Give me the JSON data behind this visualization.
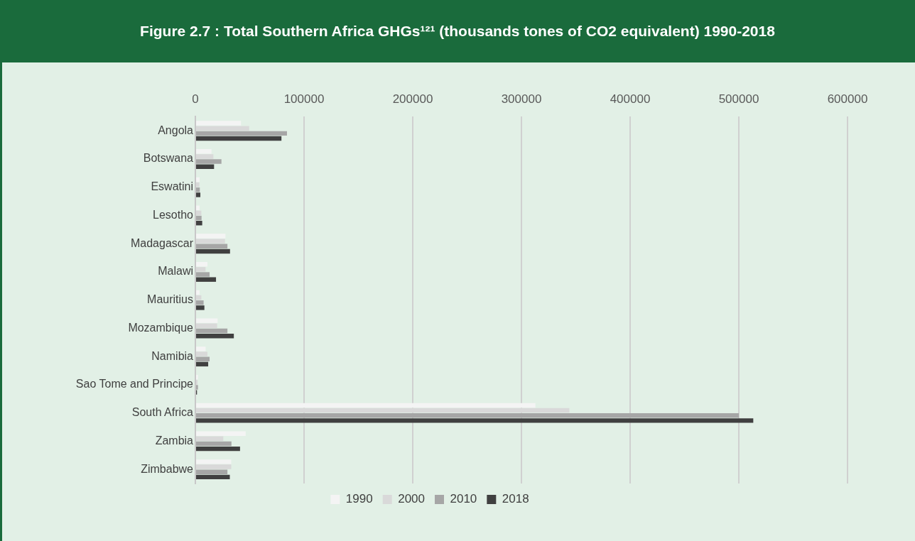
{
  "chart_data": {
    "type": "bar",
    "orientation": "horizontal",
    "title": "Figure 2.7 : Total Southern Africa GHGs¹²¹   (thousands tones of CO2 equivalent) 1990-2018",
    "categories": [
      "Angola",
      "Botswana",
      "Eswatini",
      "Lesotho",
      "Madagascar",
      "Malawi",
      "Mauritius",
      "Mozambique",
      "Namibia",
      "Sao Tome and Principe",
      "South Africa",
      "Zambia",
      "Zimbabwe"
    ],
    "series": [
      {
        "name": "1990",
        "color": "#f4f4f4",
        "values": [
          42000,
          14800,
          3900,
          3900,
          27700,
          11100,
          3900,
          20500,
          9400,
          2400,
          312800,
          46300,
          33000
        ]
      },
      {
        "name": "2000",
        "color": "#d9d9d9",
        "values": [
          49500,
          16600,
          3700,
          5500,
          27300,
          9400,
          5500,
          20000,
          11100,
          2000,
          344100,
          25700,
          33000
        ]
      },
      {
        "name": "2010",
        "color": "#a6a6a6",
        "values": [
          84300,
          24000,
          4100,
          5700,
          29500,
          13100,
          7600,
          29500,
          13100,
          2400,
          500000,
          33200,
          29500
        ]
      },
      {
        "name": "2018",
        "color": "#404040",
        "values": [
          79200,
          17200,
          4600,
          6300,
          31900,
          19000,
          8300,
          35400,
          11800,
          1500,
          513300,
          41100,
          31700
        ]
      }
    ],
    "xlim": [
      0,
      600000
    ],
    "xticks": [
      0,
      100000,
      200000,
      300000,
      400000,
      500000,
      600000
    ],
    "grid": "x",
    "legend": "bottom"
  }
}
